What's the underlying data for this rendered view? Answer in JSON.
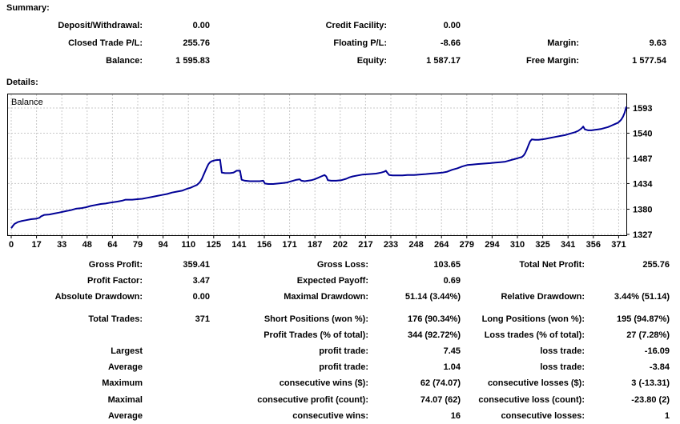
{
  "summary": {
    "title": "Summary:",
    "rows": [
      {
        "cells": [
          [
            "Deposit/Withdrawal:",
            "0.00"
          ],
          [
            "Credit Facility:",
            "0.00"
          ],
          [
            "",
            ""
          ]
        ]
      },
      {
        "cells": [
          [
            "Closed Trade P/L:",
            "255.76"
          ],
          [
            "Floating P/L:",
            "-8.66"
          ],
          [
            "Margin:",
            "9.63"
          ]
        ]
      },
      {
        "cells": [
          [
            "Balance:",
            "1 595.83"
          ],
          [
            "Equity:",
            "1 587.17"
          ],
          [
            "Free Margin:",
            "1 577.54"
          ]
        ]
      }
    ]
  },
  "details": {
    "title": "Details:",
    "rows": [
      {
        "cells": [
          [
            "Gross Profit:",
            "359.41"
          ],
          [
            "Gross Loss:",
            "103.65"
          ],
          [
            "Total Net Profit:",
            "255.76"
          ]
        ]
      },
      {
        "cells": [
          [
            "Profit Factor:",
            "3.47"
          ],
          [
            "Expected Payoff:",
            "0.69"
          ],
          [
            "",
            ""
          ]
        ]
      },
      {
        "cells": [
          [
            "Absolute Drawdown:",
            "0.00"
          ],
          [
            "Maximal Drawdown:",
            "51.14 (3.44%)"
          ],
          [
            "Relative Drawdown:",
            "3.44% (51.14)"
          ]
        ]
      },
      {
        "gap_before": true,
        "cells": [
          [
            "Total Trades:",
            "371"
          ],
          [
            "Short Positions (won %):",
            "176 (90.34%)"
          ],
          [
            "Long Positions (won %):",
            "195 (94.87%)"
          ]
        ]
      },
      {
        "cells": [
          [
            "",
            ""
          ],
          [
            "Profit Trades (% of total):",
            "344 (92.72%)"
          ],
          [
            "Loss trades (% of total):",
            "27 (7.28%)"
          ]
        ]
      },
      {
        "cells": [
          [
            "Largest",
            ""
          ],
          [
            "profit trade:",
            "7.45"
          ],
          [
            "loss trade:",
            "-16.09"
          ]
        ]
      },
      {
        "cells": [
          [
            "Average",
            ""
          ],
          [
            "profit trade:",
            "1.04"
          ],
          [
            "loss trade:",
            "-3.84"
          ]
        ]
      },
      {
        "cells": [
          [
            "Maximum",
            ""
          ],
          [
            "consecutive wins ($):",
            "62 (74.07)"
          ],
          [
            "consecutive losses ($):",
            "3 (-13.31)"
          ]
        ]
      },
      {
        "cells": [
          [
            "Maximal",
            ""
          ],
          [
            "consecutive profit (count):",
            "74.07 (62)"
          ],
          [
            "consecutive loss (count):",
            "-23.80 (2)"
          ]
        ]
      },
      {
        "cells": [
          [
            "Average",
            ""
          ],
          [
            "consecutive wins:",
            "16"
          ],
          [
            "consecutive losses:",
            "1"
          ]
        ]
      }
    ]
  },
  "chart_data": {
    "type": "line",
    "title": "",
    "legend": "Balance",
    "xlabel": "",
    "ylabel": "",
    "x_ticks": [
      0,
      17,
      33,
      48,
      64,
      79,
      94,
      110,
      125,
      141,
      156,
      171,
      187,
      202,
      217,
      233,
      248,
      264,
      279,
      294,
      310,
      325,
      341,
      356,
      371
    ],
    "y_ticks": [
      1327,
      1380,
      1434,
      1487,
      1540,
      1593
    ],
    "xlim": [
      0,
      371
    ],
    "ylim": [
      1323,
      1623
    ],
    "grid": true,
    "legend_position": "top-left",
    "colors": {
      "line": "#000096",
      "grid": "#c8c8c8",
      "border": "#000000",
      "text": "#000000",
      "background": "#ffffff"
    },
    "series": [
      {
        "name": "Balance",
        "points": [
          [
            0,
            1340
          ],
          [
            1,
            1345
          ],
          [
            2,
            1349
          ],
          [
            4,
            1353
          ],
          [
            6,
            1355
          ],
          [
            9,
            1357
          ],
          [
            12,
            1359
          ],
          [
            15,
            1360
          ],
          [
            17,
            1362
          ],
          [
            18,
            1365
          ],
          [
            20,
            1368
          ],
          [
            23,
            1369
          ],
          [
            26,
            1371
          ],
          [
            29,
            1373
          ],
          [
            33,
            1376
          ],
          [
            36,
            1378
          ],
          [
            39,
            1381
          ],
          [
            42,
            1382
          ],
          [
            45,
            1384
          ],
          [
            48,
            1387
          ],
          [
            51,
            1389
          ],
          [
            54,
            1391
          ],
          [
            57,
            1392
          ],
          [
            60,
            1394
          ],
          [
            64,
            1396
          ],
          [
            67,
            1398
          ],
          [
            69,
            1400
          ],
          [
            73,
            1400
          ],
          [
            76,
            1401
          ],
          [
            79,
            1402
          ],
          [
            82,
            1404
          ],
          [
            85,
            1406
          ],
          [
            88,
            1408
          ],
          [
            91,
            1410
          ],
          [
            94,
            1412
          ],
          [
            97,
            1415
          ],
          [
            100,
            1417
          ],
          [
            103,
            1419
          ],
          [
            106,
            1423
          ],
          [
            108,
            1425
          ],
          [
            110,
            1428
          ],
          [
            112,
            1431
          ],
          [
            113,
            1434
          ],
          [
            114,
            1438
          ],
          [
            115,
            1444
          ],
          [
            116,
            1452
          ],
          [
            117,
            1460
          ],
          [
            118,
            1468
          ],
          [
            119,
            1475
          ],
          [
            120,
            1479
          ],
          [
            121,
            1481
          ],
          [
            123,
            1483
          ],
          [
            126,
            1484
          ],
          [
            127,
            1457
          ],
          [
            129,
            1456
          ],
          [
            132,
            1456
          ],
          [
            134,
            1457
          ],
          [
            135,
            1459
          ],
          [
            136,
            1461
          ],
          [
            138,
            1461
          ],
          [
            139,
            1442
          ],
          [
            141,
            1440
          ],
          [
            144,
            1439
          ],
          [
            147,
            1439
          ],
          [
            150,
            1439
          ],
          [
            152,
            1440
          ],
          [
            153,
            1434
          ],
          [
            155,
            1433
          ],
          [
            158,
            1433
          ],
          [
            161,
            1434
          ],
          [
            164,
            1435
          ],
          [
            166,
            1436
          ],
          [
            168,
            1438
          ],
          [
            170,
            1440
          ],
          [
            172,
            1442
          ],
          [
            174,
            1443
          ],
          [
            175,
            1440
          ],
          [
            177,
            1439
          ],
          [
            179,
            1440
          ],
          [
            181,
            1441
          ],
          [
            183,
            1443
          ],
          [
            185,
            1446
          ],
          [
            187,
            1449
          ],
          [
            189,
            1452
          ],
          [
            190,
            1449
          ],
          [
            191,
            1441
          ],
          [
            193,
            1440
          ],
          [
            196,
            1440
          ],
          [
            199,
            1441
          ],
          [
            202,
            1444
          ],
          [
            204,
            1447
          ],
          [
            206,
            1449
          ],
          [
            209,
            1451
          ],
          [
            212,
            1453
          ],
          [
            216,
            1454
          ],
          [
            220,
            1455
          ],
          [
            223,
            1457
          ],
          [
            225,
            1459
          ],
          [
            226,
            1461
          ],
          [
            227,
            1456
          ],
          [
            228,
            1452
          ],
          [
            230,
            1451
          ],
          [
            233,
            1451
          ],
          [
            236,
            1451
          ],
          [
            239,
            1452
          ],
          [
            243,
            1452
          ],
          [
            246,
            1453
          ],
          [
            250,
            1454
          ],
          [
            253,
            1455
          ],
          [
            257,
            1456
          ],
          [
            260,
            1457
          ],
          [
            263,
            1459
          ],
          [
            266,
            1463
          ],
          [
            269,
            1466
          ],
          [
            272,
            1470
          ],
          [
            275,
            1473
          ],
          [
            278,
            1474
          ],
          [
            281,
            1475
          ],
          [
            285,
            1476
          ],
          [
            289,
            1477
          ],
          [
            292,
            1478
          ],
          [
            295,
            1479
          ],
          [
            298,
            1480
          ],
          [
            301,
            1483
          ],
          [
            304,
            1486
          ],
          [
            306,
            1488
          ],
          [
            308,
            1490
          ],
          [
            309,
            1493
          ],
          [
            310,
            1498
          ],
          [
            311,
            1506
          ],
          [
            312,
            1515
          ],
          [
            313,
            1523
          ],
          [
            314,
            1527
          ],
          [
            316,
            1526
          ],
          [
            318,
            1526
          ],
          [
            320,
            1527
          ],
          [
            322,
            1528
          ],
          [
            325,
            1530
          ],
          [
            328,
            1532
          ],
          [
            331,
            1534
          ],
          [
            334,
            1536
          ],
          [
            337,
            1539
          ],
          [
            340,
            1542
          ],
          [
            342,
            1545
          ],
          [
            344,
            1550
          ],
          [
            345,
            1554
          ],
          [
            346,
            1548
          ],
          [
            348,
            1546
          ],
          [
            350,
            1546
          ],
          [
            352,
            1547
          ],
          [
            354,
            1548
          ],
          [
            356,
            1549
          ],
          [
            358,
            1551
          ],
          [
            360,
            1553
          ],
          [
            362,
            1556
          ],
          [
            364,
            1559
          ],
          [
            366,
            1562
          ],
          [
            367,
            1565
          ],
          [
            368,
            1569
          ],
          [
            369,
            1575
          ],
          [
            370,
            1583
          ],
          [
            371,
            1595.8
          ]
        ]
      }
    ]
  }
}
